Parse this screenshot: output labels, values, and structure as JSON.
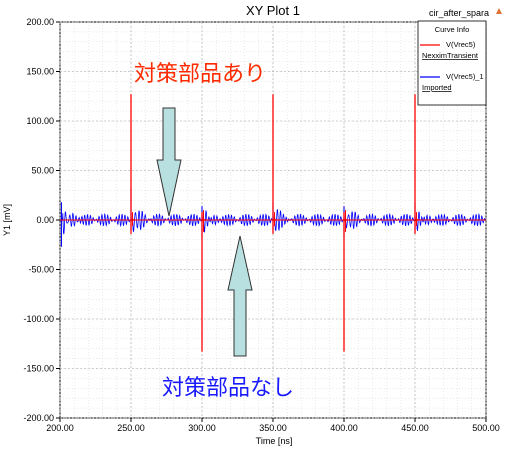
{
  "chart_data": {
    "type": "line",
    "title": "XY Plot 1",
    "project_label": "cir_after_spara",
    "xlabel": "Time [ns]",
    "ylabel": "Y1 [mV]",
    "xlim": [
      200,
      500
    ],
    "ylim": [
      -200,
      200
    ],
    "x_ticks": [
      "200.00",
      "250.00",
      "300.00",
      "350.00",
      "400.00",
      "450.00",
      "500.00"
    ],
    "y_ticks": [
      "200.00",
      "150.00",
      "100.00",
      "50.00",
      "0.00",
      "-50.00",
      "-100.00",
      "-150.00",
      "-200.00"
    ],
    "grid": true,
    "legend": {
      "title": "Curve Info",
      "position": "top-right",
      "entries": [
        {
          "line1": "V(Vrec5)",
          "line2": "NexximTransient",
          "color": "#ff0000"
        },
        {
          "line1": "V(Vrec5)_1",
          "line2": "Imported",
          "color": "#0000ff"
        }
      ]
    },
    "series": [
      {
        "color": "#ff0000",
        "baseline": 0,
        "spikes": [
          {
            "x": 250,
            "peak": 127,
            "trough": -14
          },
          {
            "x": 300,
            "peak": 8,
            "trough": -133
          },
          {
            "x": 350,
            "peak": 127,
            "trough": -14
          },
          {
            "x": 400,
            "peak": 8,
            "trough": -133
          },
          {
            "x": 450,
            "peak": 127,
            "trough": -14
          }
        ]
      },
      {
        "color": "#0000ff",
        "baseline": 0,
        "oscillation_amplitude": 6,
        "spikes": [
          {
            "x": 201,
            "peak": 18,
            "trough": -27
          },
          {
            "x": 250,
            "peak": 33,
            "trough": -10
          },
          {
            "x": 300,
            "peak": 14,
            "trough": -18
          },
          {
            "x": 350,
            "peak": 18,
            "trough": -10
          },
          {
            "x": 400,
            "peak": 14,
            "trough": -18
          },
          {
            "x": 450,
            "peak": 18,
            "trough": -10
          }
        ]
      }
    ],
    "annotations": [
      {
        "text": "対策部品あり",
        "color": "#ff2a00"
      },
      {
        "text": "対策部品なし",
        "color": "#1a1aff"
      }
    ]
  },
  "ui": {
    "accent_color": "#e07030",
    "collapse_icon": "triangle-up-icon"
  }
}
